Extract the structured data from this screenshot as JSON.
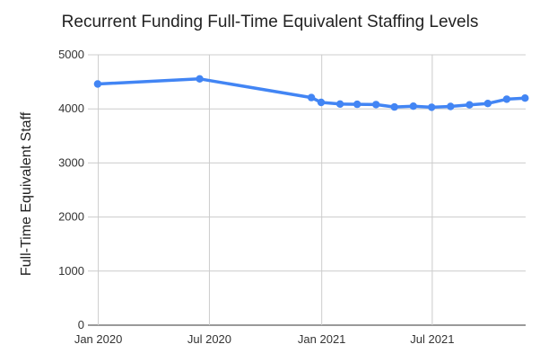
{
  "chart_data": {
    "type": "line",
    "title": "Recurrent Funding Full-Time Equivalent Staffing Levels",
    "xlabel": "",
    "ylabel": "Full-Time Equivalent Staff",
    "ylim": [
      0,
      5000
    ],
    "y_ticks": [
      0,
      1000,
      2000,
      3000,
      4000,
      5000
    ],
    "x_ticks": [
      {
        "date": "2020-01-01",
        "label": "Jan 2020"
      },
      {
        "date": "2020-07-01",
        "label": "Jul 2020"
      },
      {
        "date": "2021-01-01",
        "label": "Jan 2021"
      },
      {
        "date": "2021-07-01",
        "label": "Jul 2021"
      }
    ],
    "xlim": [
      "2019-12-15",
      "2021-12-01"
    ],
    "grid": true,
    "series": [
      {
        "color": "#4285f4",
        "points": [
          {
            "x": "2019-12-31",
            "y": 4460
          },
          {
            "x": "2020-06-15",
            "y": 4555
          },
          {
            "x": "2020-12-15",
            "y": 4210
          },
          {
            "x": "2020-12-31",
            "y": 4120
          },
          {
            "x": "2021-01-31",
            "y": 4090
          },
          {
            "x": "2021-02-28",
            "y": 4085
          },
          {
            "x": "2021-03-31",
            "y": 4080
          },
          {
            "x": "2021-04-30",
            "y": 4035
          },
          {
            "x": "2021-05-31",
            "y": 4050
          },
          {
            "x": "2021-06-30",
            "y": 4030
          },
          {
            "x": "2021-07-31",
            "y": 4045
          },
          {
            "x": "2021-08-31",
            "y": 4075
          },
          {
            "x": "2021-09-30",
            "y": 4100
          },
          {
            "x": "2021-10-31",
            "y": 4180
          },
          {
            "x": "2021-11-30",
            "y": 4200
          }
        ]
      }
    ]
  }
}
